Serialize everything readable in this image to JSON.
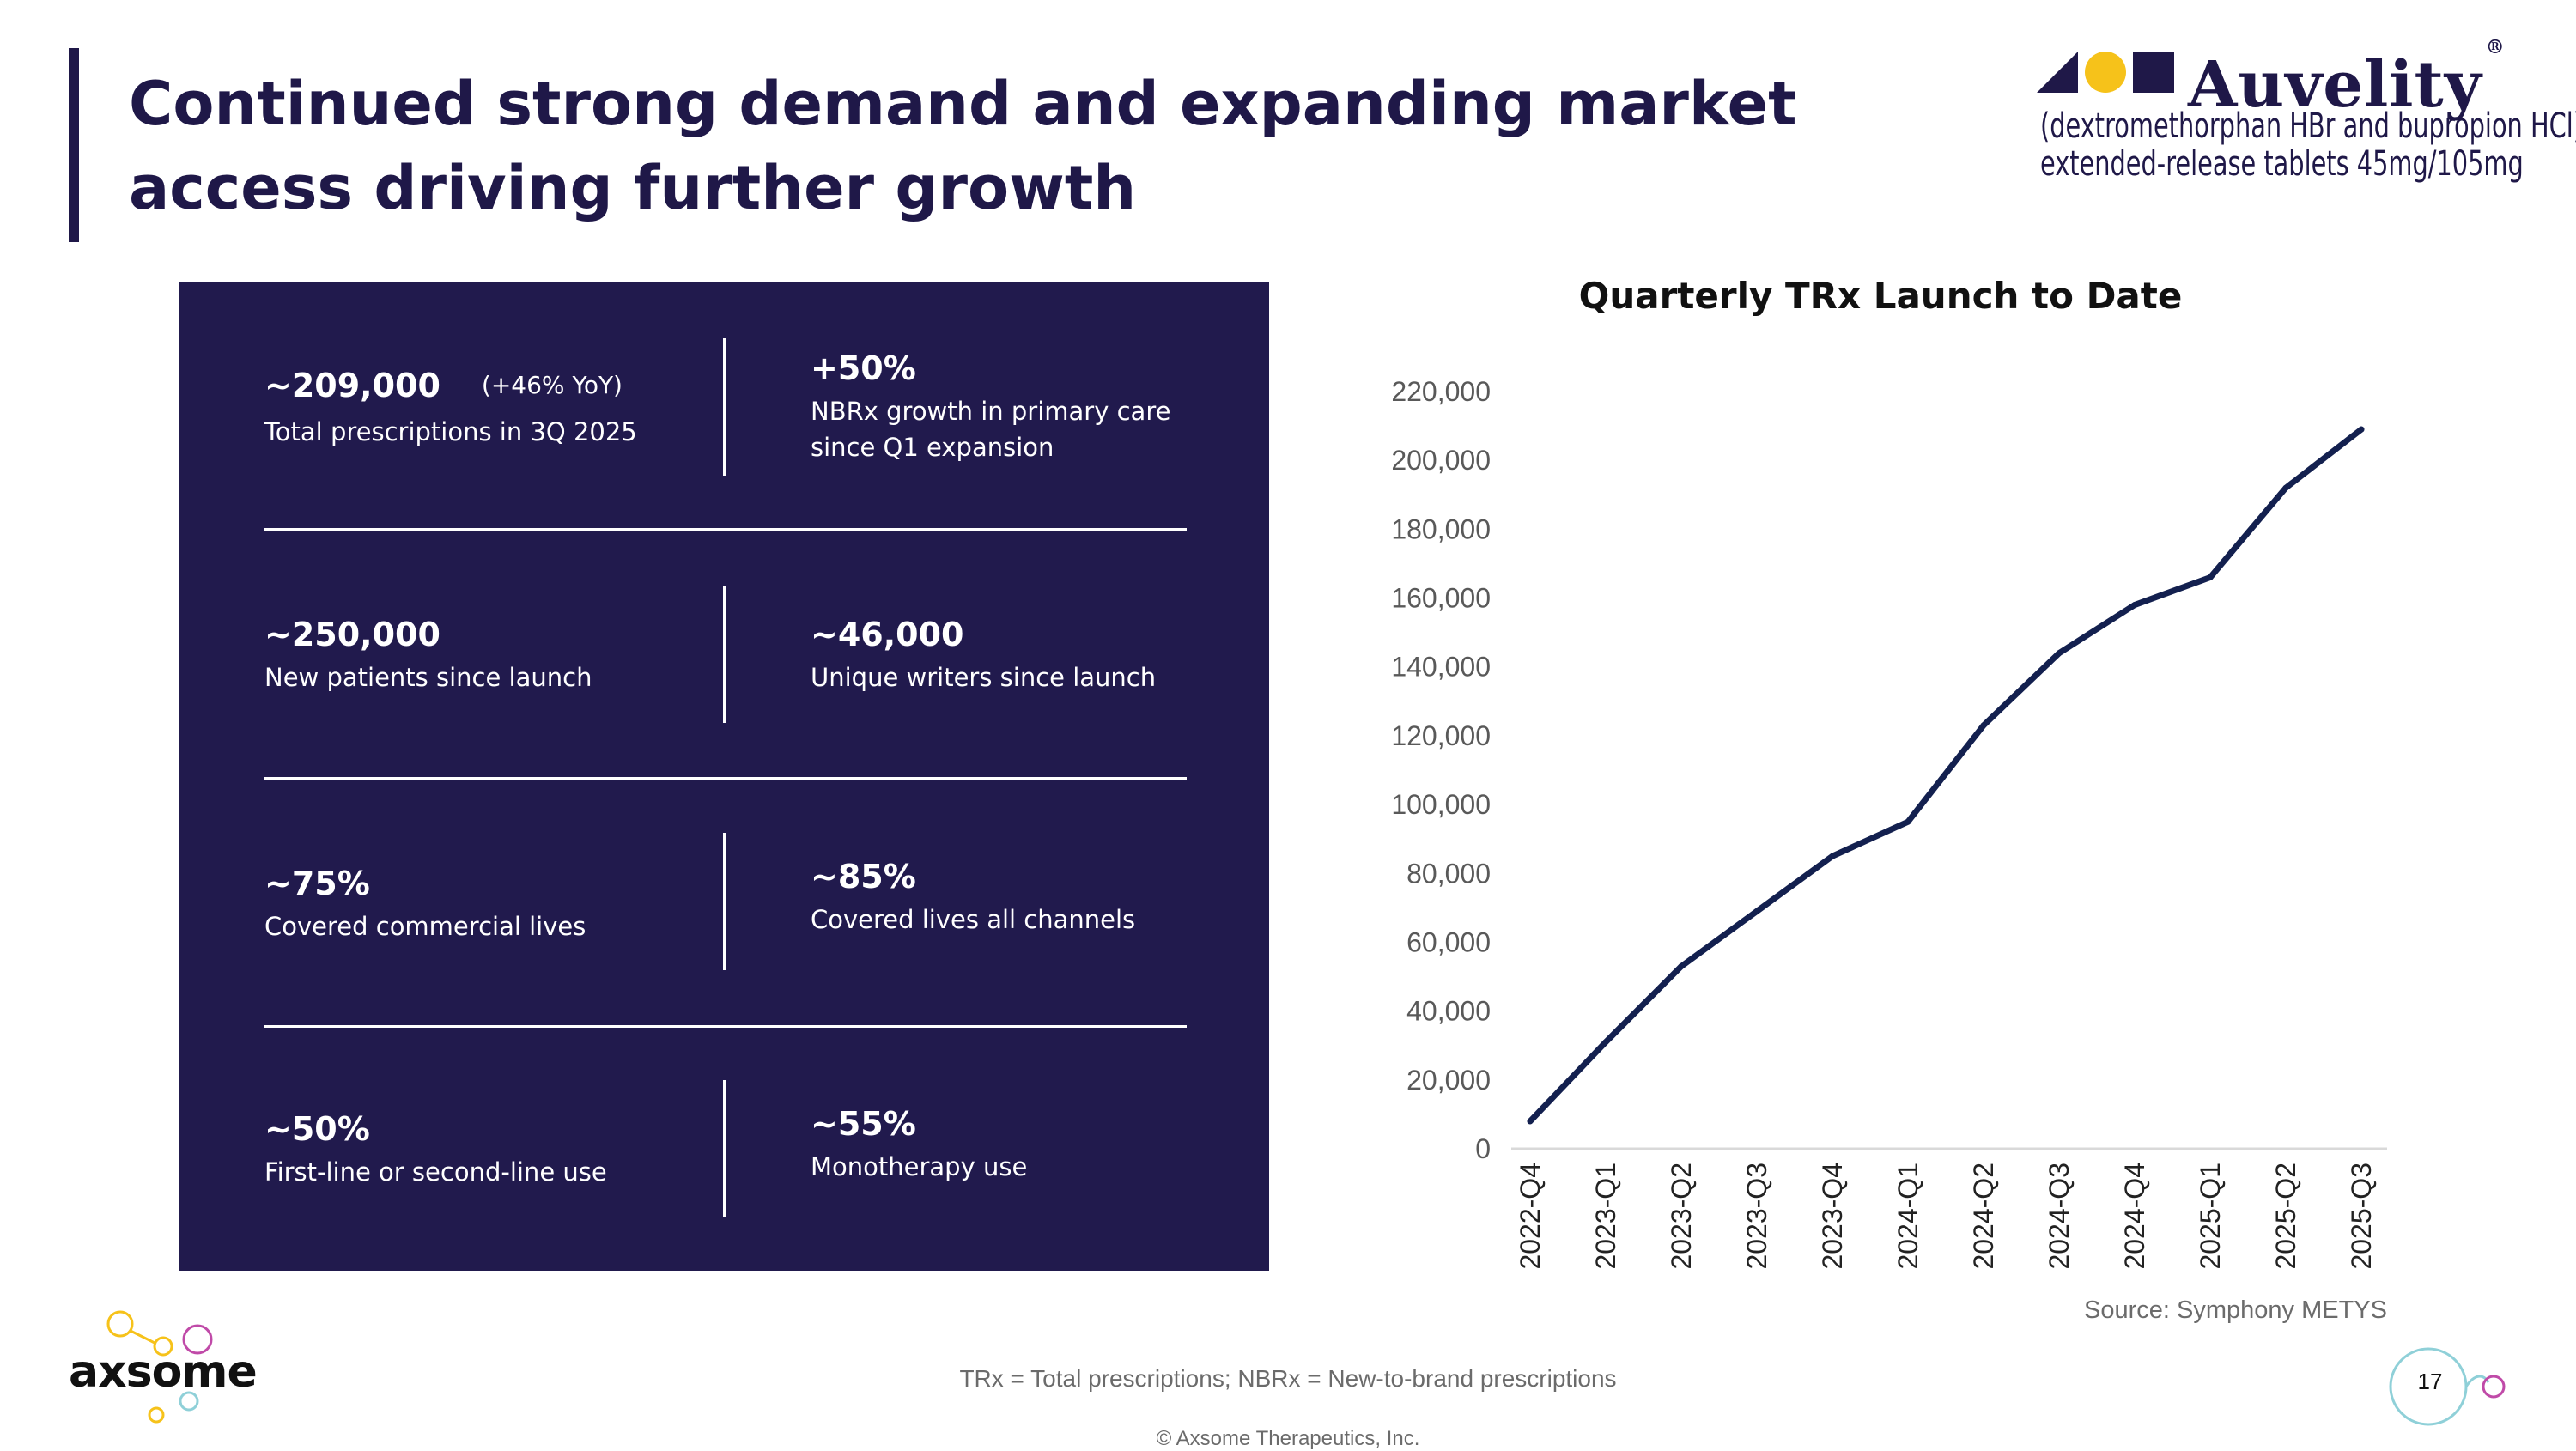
{
  "header": {
    "title": "Continued strong demand and expanding market access driving further growth"
  },
  "brand": {
    "name": "Auvelity",
    "registered": "®",
    "subtitle_line1": "(dextromethorphan HBr and bupropion HCl)",
    "subtitle_line2": "extended-release tablets 45mg/105mg",
    "colors": {
      "navy": "#1f1848",
      "yellow": "#f6c21a"
    }
  },
  "stats": {
    "trx": {
      "value": "~209,000",
      "extra": "(+46% YoY)",
      "label": "Total prescriptions in 3Q 2025"
    },
    "nbrx": {
      "value": "+50%",
      "label": "NBRx growth in primary care since Q1 expansion"
    },
    "patients": {
      "value": "~250,000",
      "label": "New patients since launch"
    },
    "writers": {
      "value": "~46,000",
      "label": "Unique writers since launch"
    },
    "commercial": {
      "value": "~75%",
      "label": "Covered commercial lives"
    },
    "all_channels": {
      "value": "~85%",
      "label": "Covered lives all channels"
    },
    "first_line": {
      "value": "~50%",
      "label": "First-line or second-line use"
    },
    "monotherapy": {
      "value": "~55%",
      "label": "Monotherapy use"
    },
    "panel_color": "#211a4d"
  },
  "chart_data": {
    "type": "line",
    "title": "Quarterly TRx Launch to Date",
    "categories": [
      "2022-Q4",
      "2023-Q1",
      "2023-Q2",
      "2023-Q3",
      "2023-Q4",
      "2024-Q1",
      "2024-Q2",
      "2024-Q3",
      "2024-Q4",
      "2025-Q1",
      "2025-Q2",
      "2025-Q3"
    ],
    "series": [
      {
        "name": "TRx",
        "values": [
          8000,
          31000,
          53000,
          69000,
          85000,
          95000,
          123000,
          144000,
          158000,
          166000,
          192000,
          209000
        ],
        "color": "#13204f"
      }
    ],
    "yticks": [
      0,
      20000,
      40000,
      60000,
      80000,
      100000,
      120000,
      140000,
      160000,
      180000,
      200000,
      220000
    ],
    "ytick_labels": [
      "0",
      "20,000",
      "40,000",
      "60,000",
      "80,000",
      "100,000",
      "120,000",
      "140,000",
      "160,000",
      "180,000",
      "200,000",
      "220,000"
    ],
    "ylim": [
      0,
      220000
    ],
    "xlabel": "",
    "ylabel": "",
    "grid": false,
    "legend": "none"
  },
  "footer": {
    "source": "Source: Symphony METYS",
    "footnote": "TRx = Total prescriptions; NBRx = New-to-brand prescriptions",
    "copyright": "© Axsome Therapeutics, Inc.",
    "company": "axsome",
    "page_number": "17"
  }
}
